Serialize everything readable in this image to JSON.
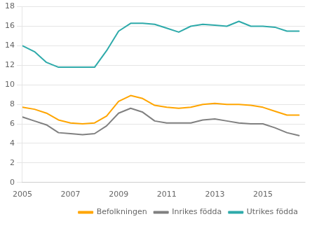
{
  "chart_data": {
    "type": "line",
    "x": [
      2005,
      2005.5,
      2006,
      2006.5,
      2007,
      2007.5,
      2008,
      2008.5,
      2009,
      2009.5,
      2010,
      2010.5,
      2011,
      2011.5,
      2012,
      2012.5,
      2013,
      2013.5,
      2014,
      2014.5,
      2015,
      2015.5,
      2016,
      2016.5
    ],
    "series": [
      {
        "name": "Befolkningen",
        "color": "#FFA500",
        "values": [
          7.7,
          7.5,
          7.1,
          6.4,
          6.1,
          6.0,
          6.1,
          6.8,
          8.3,
          8.9,
          8.6,
          7.9,
          7.7,
          7.6,
          7.7,
          8.0,
          8.1,
          8.0,
          8.0,
          7.9,
          7.7,
          7.3,
          6.9,
          6.9
        ]
      },
      {
        "name": "Inrikes födda",
        "color": "#808080",
        "values": [
          6.7,
          6.3,
          5.9,
          5.1,
          5.0,
          4.9,
          5.0,
          5.8,
          7.1,
          7.6,
          7.2,
          6.3,
          6.1,
          6.1,
          6.1,
          6.4,
          6.5,
          6.3,
          6.1,
          6.0,
          6.0,
          5.6,
          5.1,
          4.8
        ]
      },
      {
        "name": "Utrikes födda",
        "color": "#2EAAAA",
        "values": [
          14.0,
          13.4,
          12.3,
          11.8,
          11.8,
          11.8,
          11.8,
          13.5,
          15.5,
          16.3,
          16.3,
          16.2,
          15.8,
          15.4,
          16.0,
          16.2,
          16.1,
          16.0,
          16.5,
          16.0,
          16.0,
          15.9,
          15.5,
          15.5
        ]
      }
    ],
    "xlim": [
      2005,
      2016.75
    ],
    "xticks": [
      2005,
      2007,
      2009,
      2011,
      2013,
      2015
    ],
    "ylim": [
      0,
      18
    ],
    "yticks": [
      0,
      2,
      4,
      6,
      8,
      10,
      12,
      14,
      16,
      18
    ],
    "grid": "y",
    "legend": "lower right"
  }
}
